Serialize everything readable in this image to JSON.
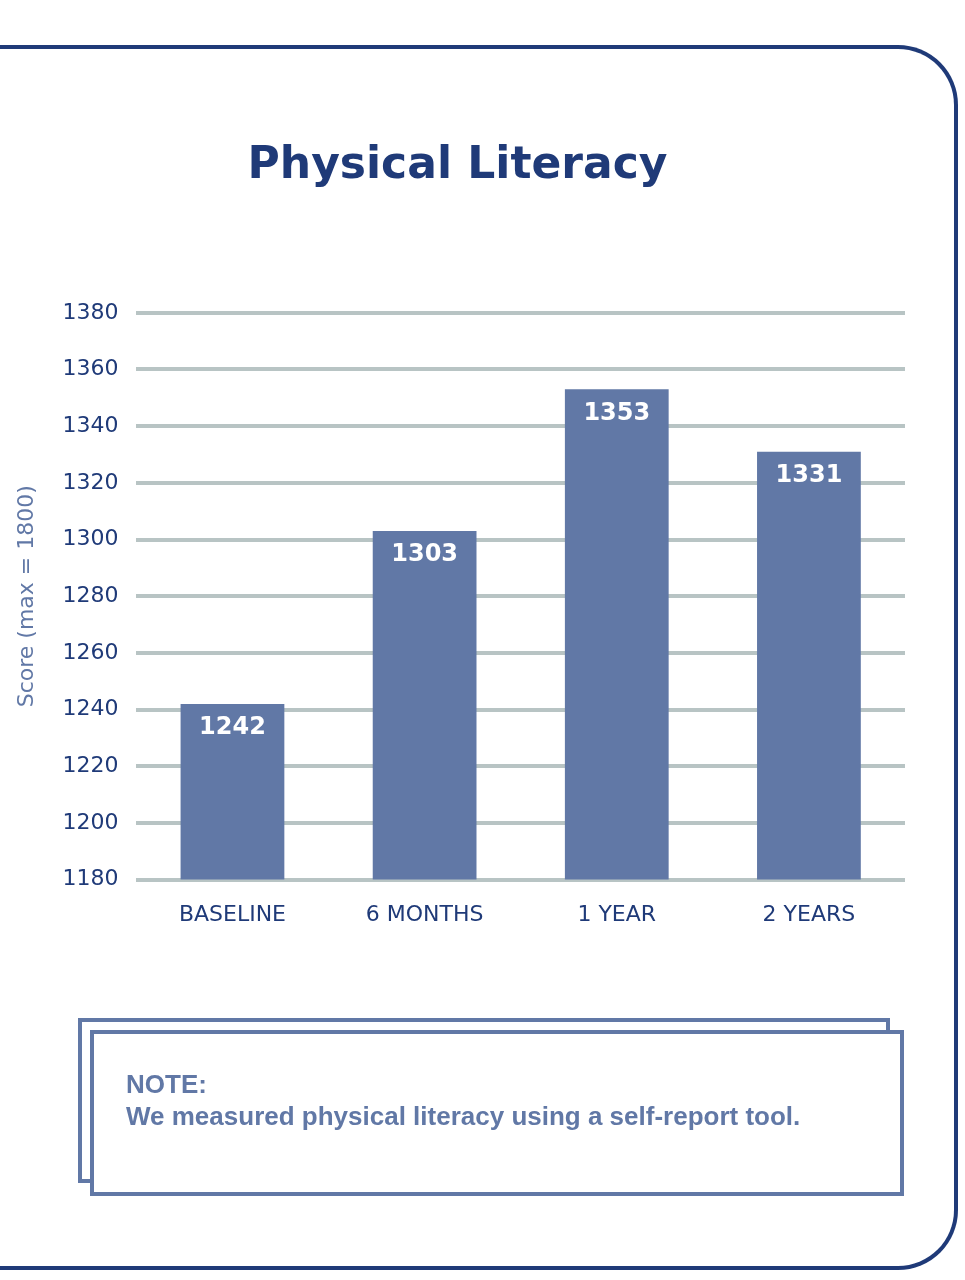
{
  "chart_data": {
    "type": "bar",
    "title": "Physical Literacy",
    "ylabel": "Score (max = 1800)",
    "categories": [
      "BASELINE",
      "6 MONTHS",
      "1 YEAR",
      "2 YEARS"
    ],
    "values": [
      1242,
      1303,
      1353,
      1331
    ],
    "color": "#6178a6",
    "ylim": [
      1180,
      1380
    ],
    "yticks": [
      1180,
      1200,
      1220,
      1240,
      1260,
      1280,
      1300,
      1320,
      1340,
      1360,
      1380
    ],
    "grid": "y",
    "data_labels": true,
    "annotations": [
      "NOTE:\nWe measured physical literacy using a self-report tool."
    ]
  }
}
